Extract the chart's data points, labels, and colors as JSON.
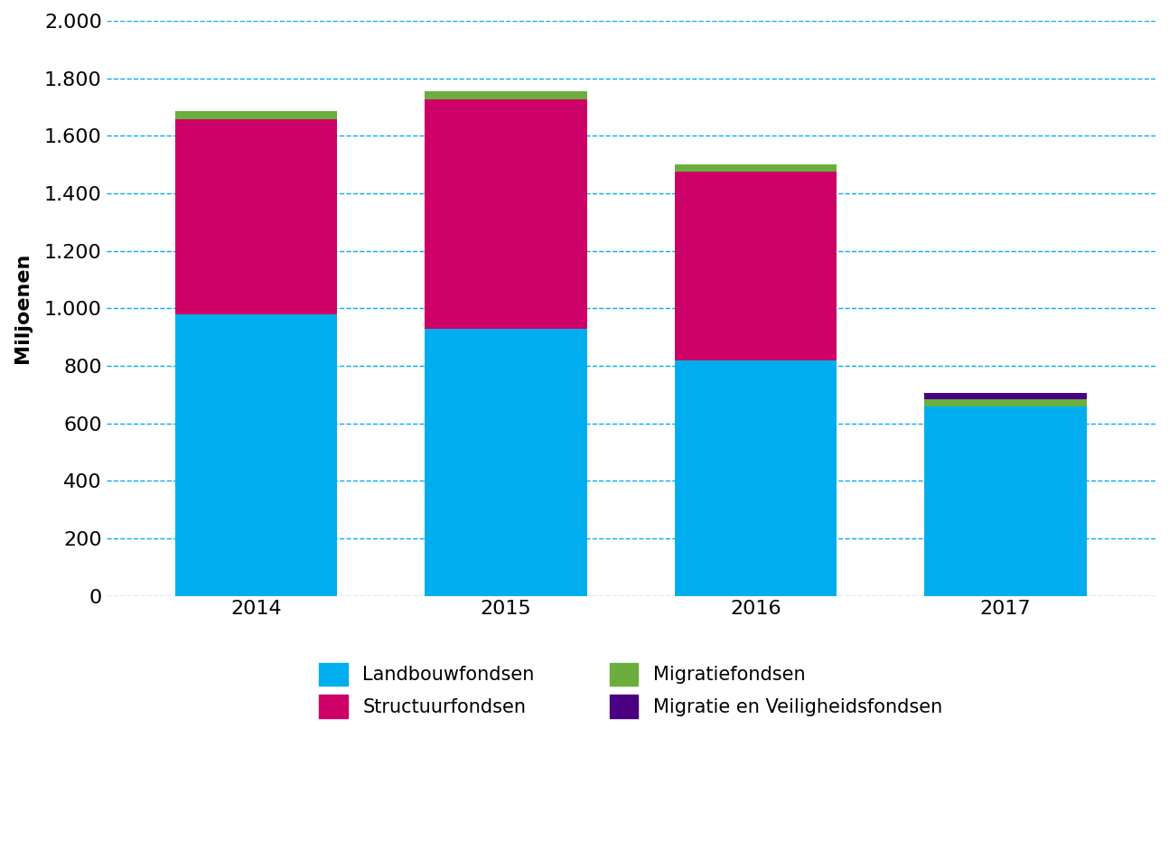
{
  "years": [
    "2014",
    "2015",
    "2016",
    "2017"
  ],
  "series": {
    "Landbouwfondsen": [
      978,
      928,
      820,
      658
    ],
    "Structuurfondsen": [
      680,
      800,
      655,
      0
    ],
    "Migratiefondsen": [
      27,
      27,
      27,
      27
    ],
    "Migratie en Veiligheidsfondsen": [
      0,
      0,
      0,
      20
    ]
  },
  "colors": {
    "Landbouwfondsen": "#00AEEF",
    "Structuurfondsen": "#CC0066",
    "Migratiefondsen": "#6AAF3D",
    "Migratie en Veiligheidsfondsen": "#4B0082"
  },
  "ylabel": "Miljoenen",
  "ylim": [
    0,
    2000
  ],
  "yticks": [
    0,
    200,
    400,
    600,
    800,
    1000,
    1200,
    1400,
    1600,
    1800,
    2000
  ],
  "ytick_labels": [
    "0",
    "200",
    "400",
    "600",
    "800",
    "1.000",
    "1.200",
    "1.400",
    "1.600",
    "1.800",
    "2.000"
  ],
  "bar_width": 0.65,
  "grid_color": "#00AEEF",
  "background_color": "#FFFFFF",
  "legend_order": [
    "Landbouwfondsen",
    "Structuurfondsen",
    "Migratiefondsen",
    "Migratie en Veiligheidsfondsen"
  ]
}
